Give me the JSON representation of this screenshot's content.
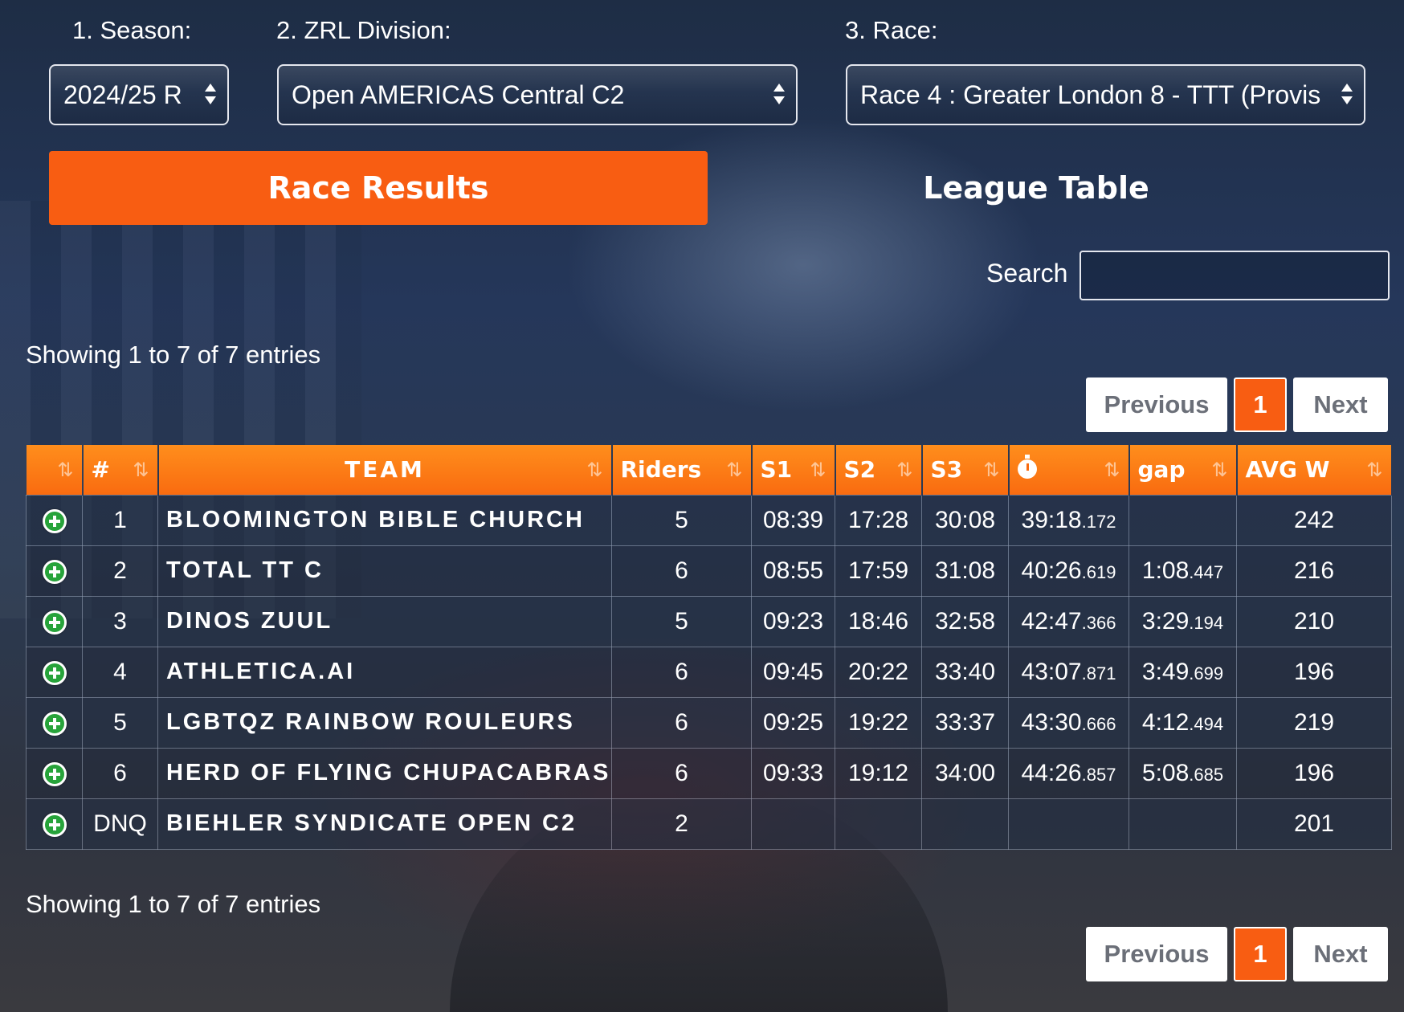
{
  "filters": {
    "season": {
      "label": "1. Season:",
      "value": "2024/25 R"
    },
    "division": {
      "label": "2. ZRL Division:",
      "value": "Open AMERICAS Central C2"
    },
    "race": {
      "label": "3. Race:",
      "value": "Race 4 : Greater London 8 - TTT (Provis"
    }
  },
  "tabs": {
    "race_results": "Race Results",
    "league_table": "League Table"
  },
  "search": {
    "label": "Search",
    "value": ""
  },
  "info": {
    "top": "Showing 1 to 7 of 7 entries",
    "bottom": "Showing 1 to 7 of 7 entries"
  },
  "pagination": {
    "previous": "Previous",
    "page": "1",
    "next": "Next"
  },
  "table": {
    "columns": {
      "expand": "",
      "rank": "#",
      "team": "TEAM",
      "riders": "Riders",
      "s1": "S1",
      "s2": "S2",
      "s3": "S3",
      "time": "stopwatch-icon",
      "gap": "gap",
      "avg_w": "AVG W"
    },
    "sort_icon": "⇅",
    "rows": [
      {
        "rank": "1",
        "team": "BLOOMINGTON BIBLE CHURCH",
        "riders": "5",
        "s1": "08:39",
        "s2": "17:28",
        "s3": "30:08",
        "time": "39:18",
        "time_ms": ".172",
        "gap": "",
        "gap_ms": "",
        "avg_w": "242"
      },
      {
        "rank": "2",
        "team": "TOTAL TT C",
        "riders": "6",
        "s1": "08:55",
        "s2": "17:59",
        "s3": "31:08",
        "time": "40:26",
        "time_ms": ".619",
        "gap": "1:08",
        "gap_ms": ".447",
        "avg_w": "216"
      },
      {
        "rank": "3",
        "team": "DINOS ZUUL",
        "riders": "5",
        "s1": "09:23",
        "s2": "18:46",
        "s3": "32:58",
        "time": "42:47",
        "time_ms": ".366",
        "gap": "3:29",
        "gap_ms": ".194",
        "avg_w": "210"
      },
      {
        "rank": "4",
        "team": "ATHLETICA.AI",
        "riders": "6",
        "s1": "09:45",
        "s2": "20:22",
        "s3": "33:40",
        "time": "43:07",
        "time_ms": ".871",
        "gap": "3:49",
        "gap_ms": ".699",
        "avg_w": "196"
      },
      {
        "rank": "5",
        "team": "LGBTQZ RAINBOW ROULEURS",
        "riders": "6",
        "s1": "09:25",
        "s2": "19:22",
        "s3": "33:37",
        "time": "43:30",
        "time_ms": ".666",
        "gap": "4:12",
        "gap_ms": ".494",
        "avg_w": "219"
      },
      {
        "rank": "6",
        "team": "HERD OF FLYING CHUPACABRAS",
        "riders": "6",
        "s1": "09:33",
        "s2": "19:12",
        "s3": "34:00",
        "time": "44:26",
        "time_ms": ".857",
        "gap": "5:08",
        "gap_ms": ".685",
        "avg_w": "196"
      },
      {
        "rank": "DNQ",
        "team": "BIEHLER SYNDICATE OPEN C2",
        "riders": "2",
        "s1": "",
        "s2": "",
        "s3": "",
        "time": "",
        "time_ms": "",
        "gap": "",
        "gap_ms": "",
        "avg_w": "201"
      }
    ]
  },
  "colors": {
    "accent": "#f85d12",
    "header_gradient_top": "#ff8e1c",
    "expand_icon": "#27a33a"
  }
}
